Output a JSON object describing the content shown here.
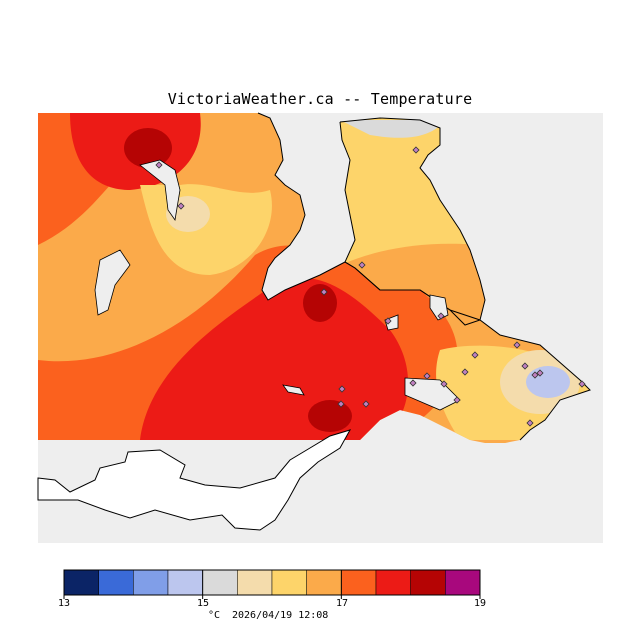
{
  "title": "VictoriaWeather.ca -- Temperature",
  "footer": {
    "unit": "°C",
    "timestamp": "2026/04/19 12:08"
  },
  "colorbar": {
    "colors": [
      "#0b2466",
      "#3a6ad8",
      "#809ee8",
      "#bcc6ee",
      "#dadada",
      "#f4dcac",
      "#fdd46a",
      "#fbaa4a",
      "#fb611e",
      "#ec1b16",
      "#b50404",
      "#a8087d"
    ],
    "tick_labels": [
      "13",
      "15",
      "17",
      "19"
    ]
  },
  "palette": {
    "water": "#eeeeee",
    "warm_orange": "#fbaa4a",
    "dark_orange": "#fb611e",
    "red": "#ec1b16",
    "dark_red": "#b50404",
    "yellow": "#fdd46a",
    "pale": "#f4dcac",
    "light_blue": "#bcc6ee",
    "grey": "#dadada"
  },
  "stations": {
    "marker": "diamond",
    "count": 22
  }
}
